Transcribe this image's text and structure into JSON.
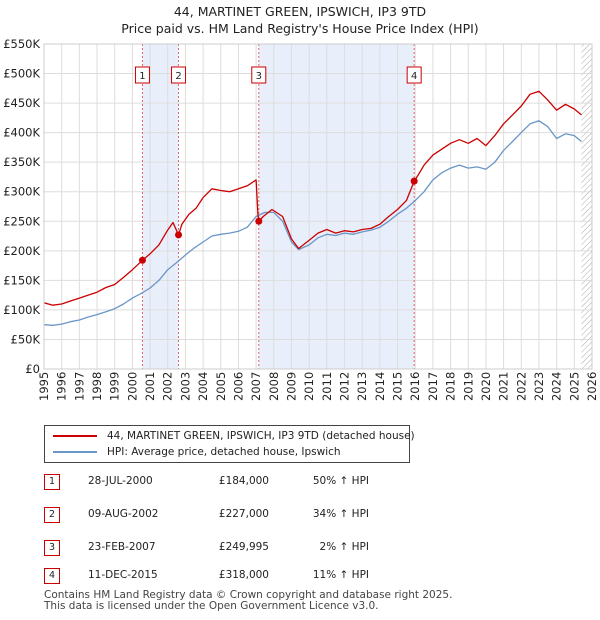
{
  "chart_data": {
    "type": "line",
    "title": "44, MARTINET GREEN, IPSWICH, IP3 9TD",
    "subtitle": "Price paid vs. HM Land Registry's House Price Index (HPI)",
    "x_range": [
      1995,
      2026
    ],
    "ylim": [
      0,
      550000
    ],
    "x_tick_labels": [
      "1995",
      "1996",
      "1997",
      "1998",
      "1999",
      "2000",
      "2001",
      "2002",
      "2003",
      "2004",
      "2005",
      "2006",
      "2007",
      "2008",
      "2009",
      "2010",
      "2011",
      "2012",
      "2013",
      "2014",
      "2015",
      "2016",
      "2017",
      "2018",
      "2019",
      "2020",
      "2021",
      "2022",
      "2023",
      "2024",
      "2025",
      "2026"
    ],
    "y_ticks": [
      0,
      50000,
      100000,
      150000,
      200000,
      250000,
      300000,
      350000,
      400000,
      450000,
      500000,
      550000
    ],
    "y_tick_labels": [
      "£0",
      "£50K",
      "£100K",
      "£150K",
      "£200K",
      "£250K",
      "£300K",
      "£350K",
      "£400K",
      "£450K",
      "£500K",
      "£550K"
    ],
    "grid": true,
    "colors": {
      "property": "#cc0000",
      "hpi": "#6a96c8",
      "shade": "#e8eefa",
      "marker_line": "#e06666",
      "hatch": "#aaaaaa"
    },
    "series": [
      {
        "name": "44, MARTINET GREEN, IPSWICH, IP3 9TD (detached house)",
        "color": "#cc0000",
        "x": [
          1995.0,
          1995.5,
          1996.0,
          1996.5,
          1997.0,
          1997.5,
          1998.0,
          1998.5,
          1999.0,
          1999.5,
          2000.0,
          2000.57,
          2001.0,
          2001.5,
          2002.0,
          2002.3,
          2002.61,
          2002.8,
          2003.2,
          2003.6,
          2004.0,
          2004.5,
          2005.0,
          2005.5,
          2006.0,
          2006.5,
          2007.0,
          2007.1,
          2007.15,
          2007.4,
          2007.9,
          2008.5,
          2009.0,
          2009.4,
          2010.0,
          2010.5,
          2011.0,
          2011.5,
          2012.0,
          2012.5,
          2013.0,
          2013.5,
          2014.0,
          2014.5,
          2015.0,
          2015.5,
          2015.94,
          2016.2,
          2016.5,
          2017.0,
          2017.5,
          2018.0,
          2018.5,
          2019.0,
          2019.5,
          2020.0,
          2020.5,
          2021.0,
          2021.5,
          2022.0,
          2022.5,
          2023.0,
          2023.5,
          2024.0,
          2024.5,
          2025.0,
          2025.4
        ],
        "values": [
          112000,
          108000,
          110000,
          115000,
          120000,
          125000,
          130000,
          138000,
          143000,
          155000,
          168000,
          184000,
          195000,
          210000,
          235000,
          248000,
          227000,
          245000,
          262000,
          272000,
          290000,
          305000,
          302000,
          300000,
          305000,
          310000,
          320000,
          262000,
          249995,
          258000,
          270000,
          258000,
          220000,
          204000,
          218000,
          230000,
          236000,
          230000,
          234000,
          232000,
          236000,
          238000,
          245000,
          258000,
          270000,
          285000,
          318000,
          330000,
          345000,
          362000,
          372000,
          382000,
          388000,
          382000,
          390000,
          378000,
          395000,
          415000,
          430000,
          445000,
          465000,
          470000,
          455000,
          438000,
          448000,
          440000,
          430000
        ]
      },
      {
        "name": "HPI: Average price, detached house, Ipswich",
        "color": "#6a96c8",
        "x": [
          1995.0,
          1995.5,
          1996.0,
          1996.5,
          1997.0,
          1997.5,
          1998.0,
          1998.5,
          1999.0,
          1999.5,
          2000.0,
          2000.5,
          2001.0,
          2001.5,
          2002.0,
          2002.5,
          2003.0,
          2003.5,
          2004.0,
          2004.5,
          2005.0,
          2005.5,
          2006.0,
          2006.5,
          2007.0,
          2007.5,
          2008.0,
          2008.5,
          2009.0,
          2009.4,
          2010.0,
          2010.5,
          2011.0,
          2011.5,
          2012.0,
          2012.5,
          2013.0,
          2013.5,
          2014.0,
          2014.5,
          2015.0,
          2015.5,
          2016.0,
          2016.5,
          2017.0,
          2017.5,
          2018.0,
          2018.5,
          2019.0,
          2019.5,
          2020.0,
          2020.5,
          2021.0,
          2021.5,
          2022.0,
          2022.5,
          2023.0,
          2023.5,
          2024.0,
          2024.5,
          2025.0,
          2025.4
        ],
        "values": [
          75000,
          74000,
          76000,
          80000,
          83000,
          88000,
          92000,
          97000,
          102000,
          110000,
          120000,
          128000,
          137000,
          150000,
          168000,
          180000,
          193000,
          205000,
          215000,
          225000,
          228000,
          230000,
          233000,
          240000,
          258000,
          265000,
          265000,
          250000,
          215000,
          202000,
          210000,
          222000,
          228000,
          226000,
          230000,
          228000,
          232000,
          235000,
          240000,
          250000,
          262000,
          272000,
          285000,
          300000,
          320000,
          332000,
          340000,
          345000,
          340000,
          342000,
          338000,
          350000,
          370000,
          385000,
          400000,
          415000,
          420000,
          410000,
          390000,
          398000,
          395000,
          385000
        ]
      }
    ],
    "sales": [
      {
        "id": "1",
        "x": 2000.57,
        "date": "28-JUL-2000",
        "price": 184000,
        "price_label": "£184,000",
        "hpi_change": "50% ↑ HPI"
      },
      {
        "id": "2",
        "x": 2002.61,
        "date": "09-AUG-2002",
        "price": 227000,
        "price_label": "£227,000",
        "hpi_change": "34% ↑ HPI"
      },
      {
        "id": "3",
        "x": 2007.15,
        "date": "23-FEB-2007",
        "price": 249995,
        "price_label": "£249,995",
        "hpi_change": "2% ↑ HPI"
      },
      {
        "id": "4",
        "x": 2015.94,
        "date": "11-DEC-2015",
        "price": 318000,
        "price_label": "£318,000",
        "hpi_change": "11% ↑ HPI"
      }
    ],
    "shaded_periods": [
      [
        2000.57,
        2002.61
      ],
      [
        2007.15,
        2015.94
      ]
    ],
    "hatched_from": 2025.4
  },
  "legend": {
    "property": "44, MARTINET GREEN, IPSWICH, IP3 9TD (detached house)",
    "hpi": "HPI: Average price, detached house, Ipswich"
  },
  "footer": {
    "line1": "Contains HM Land Registry data © Crown copyright and database right 2025.",
    "line2": "This data is licensed under the Open Government Licence v3.0."
  }
}
